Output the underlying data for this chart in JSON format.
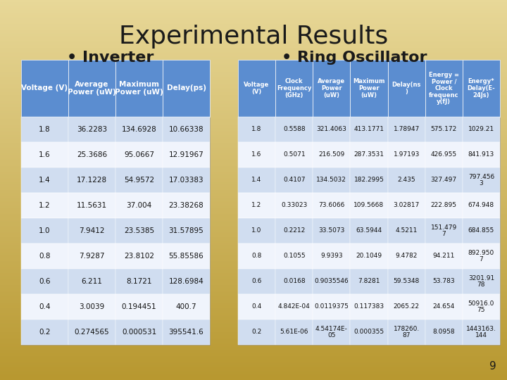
{
  "title": "Experimental Results",
  "subtitle_left": "• Inverter",
  "subtitle_right": "• Ring Oscillator",
  "background_color_top": "#e8d898",
  "background_color_bottom": "#b89830",
  "header_color": "#5b8dd0",
  "alt_row_color": "#d0ddf0",
  "white_row_color": "#f0f4fc",
  "header_text_color": "#ffffff",
  "title_color": "#1a1a1a",
  "table_text_color": "#111111",
  "inverter_headers": [
    "Voltage (V)",
    "Average\nPower (uW)",
    "Maximum\nPower (uW)",
    "Delay(ps)"
  ],
  "inverter_data": [
    [
      "1.8",
      "36.2283",
      "134.6928",
      "10.66338"
    ],
    [
      "1.6",
      "25.3686",
      "95.0667",
      "12.91967"
    ],
    [
      "1.4",
      "17.1228",
      "54.9572",
      "17.03383"
    ],
    [
      "1.2",
      "11.5631",
      "37.004",
      "23.38268"
    ],
    [
      "1.0",
      "7.9412",
      "23.5385",
      "31.57895"
    ],
    [
      "0.8",
      "7.9287",
      "23.8102",
      "55.85586"
    ],
    [
      "0.6",
      "6.211",
      "8.1721",
      "128.6984"
    ],
    [
      "0.4",
      "3.0039",
      "0.194451",
      "400.7"
    ],
    [
      "0.2",
      "0.274565",
      "0.000531",
      "395541.6"
    ]
  ],
  "ring_headers": [
    "Voltage\n(V)",
    "Clock\nFrequency\n(GHz)",
    "Average\nPower\n(uW)",
    "Maximum\nPower\n(uW)",
    "Delay(ns\n)",
    "Energy =\nPower /\nClock\nfrequenc\ny(fJ)",
    "Energy*\nDelay(E-\n24Js)"
  ],
  "ring_data": [
    [
      "1.8",
      "0.5588",
      "321.4063",
      "413.1771",
      "1.78947",
      "575.172",
      "1029.21"
    ],
    [
      "1.6",
      "0.5071",
      "216.509",
      "287.3531",
      "1.97193",
      "426.955",
      "841.913"
    ],
    [
      "1.4",
      "0.4107",
      "134.5032",
      "182.2995",
      "2.435",
      "327.497",
      "797.456\n3"
    ],
    [
      "1.2",
      "0.33023",
      "73.6066",
      "109.5668",
      "3.02817",
      "222.895",
      "674.948"
    ],
    [
      "1.0",
      "0.2212",
      "33.5073",
      "63.5944",
      "4.5211",
      "151.479\n7",
      "684.855"
    ],
    [
      "0.8",
      "0.1055",
      "9.9393",
      "20.1049",
      "9.4782",
      "94.211",
      "892.950\n7"
    ],
    [
      "0.6",
      "0.0168",
      "0.9035546",
      "7.8281",
      "59.5348",
      "53.783",
      "3201.91\n78"
    ],
    [
      "0.4",
      "4.842E-04",
      "0.0119375",
      "0.117383",
      "2065.22",
      "24.654",
      "50916.0\n75"
    ],
    [
      "0.2",
      "5.61E-06",
      "4.54174E-\n05",
      "0.000355",
      "178260.\n87",
      "8.0958",
      "1443163.\n144"
    ]
  ],
  "page_number": "9"
}
